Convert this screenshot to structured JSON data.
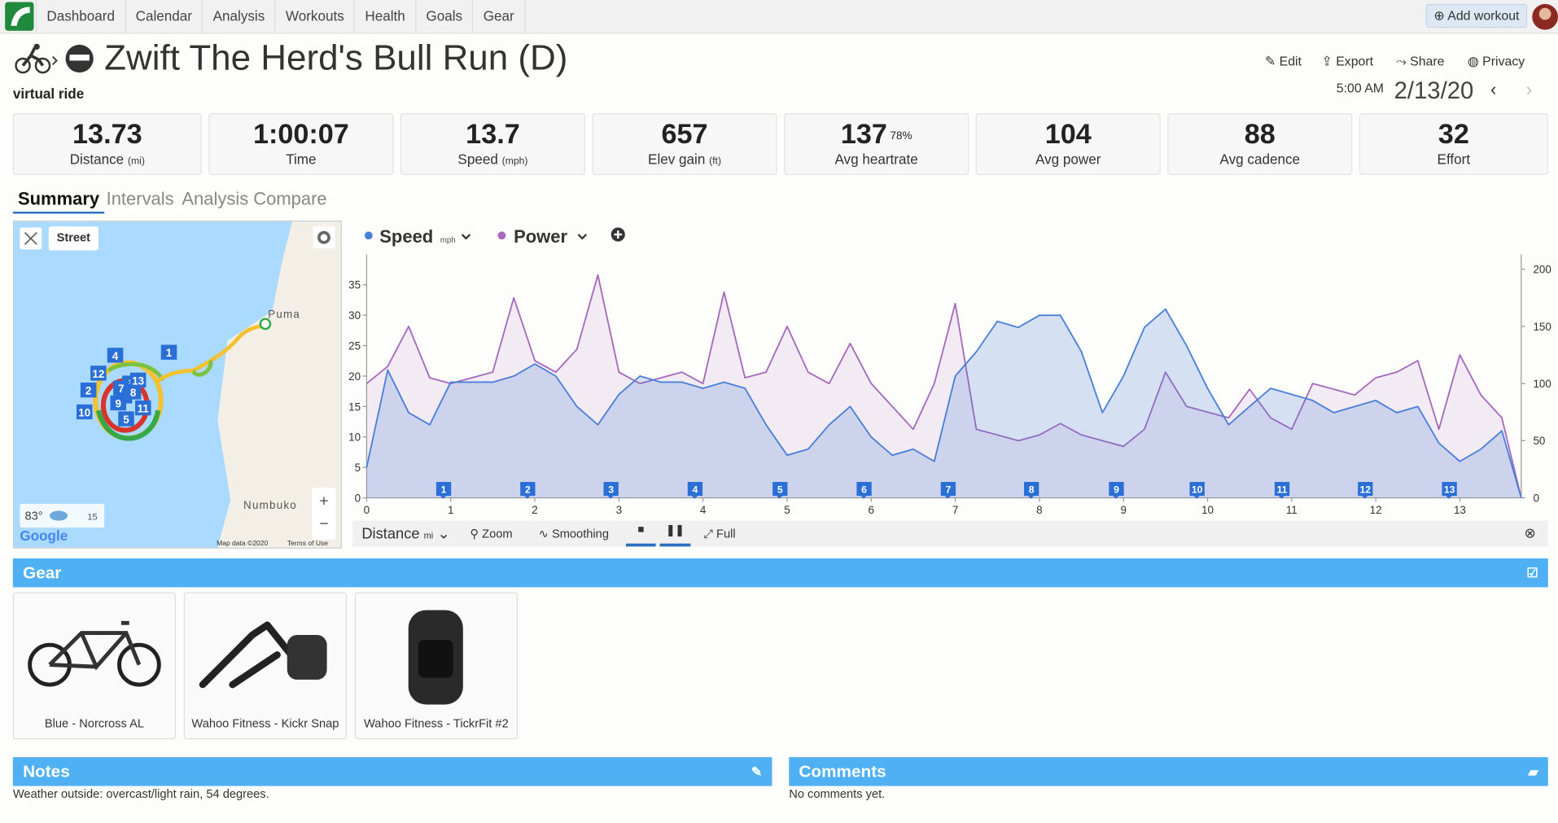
{
  "nav": {
    "items": [
      "Dashboard",
      "Calendar",
      "Analysis",
      "Workouts",
      "Health",
      "Goals",
      "Gear"
    ],
    "add_button": "Add workout"
  },
  "header": {
    "title": "Zwift The Herd's Bull Run (D)",
    "subtitle": "virtual ride",
    "actions": [
      "Edit",
      "Export",
      "Share",
      "Privacy"
    ],
    "time": "5:00 AM",
    "date": "2/13/20"
  },
  "stats": [
    {
      "value": 13.73,
      "label": "Distance",
      "unit": "(mi)"
    },
    {
      "value": "1:00:07",
      "label": "Time"
    },
    {
      "value": 13.7,
      "label": "Speed",
      "unit": "(mph)"
    },
    {
      "value": 657,
      "label": "Elev gain",
      "unit": "(ft)"
    },
    {
      "value": 137,
      "label": "Avg heartrate",
      "extra": "78%"
    },
    {
      "value": 104,
      "label": "Avg power"
    },
    {
      "value": 88,
      "label": "Avg cadence"
    },
    {
      "value": 32,
      "label": "Effort"
    }
  ],
  "tabs": [
    "Summary",
    "Intervals",
    "Analysis",
    "Compare"
  ],
  "map": {
    "style": "Street",
    "places": [
      "Puma",
      "Numbuko"
    ],
    "temp": "83°",
    "wind": "15",
    "logo": "Google",
    "attribution": "Map data ©2020",
    "terms": "Terms of Use",
    "markers": [
      "1",
      "2",
      "3",
      "4",
      "5",
      "6",
      "7",
      "8",
      "9",
      "10",
      "11",
      "12",
      "13"
    ]
  },
  "chart_data": {
    "type": "line",
    "x": [
      0,
      0.25,
      0.5,
      0.75,
      1,
      1.25,
      1.5,
      1.75,
      2,
      2.25,
      2.5,
      2.75,
      3,
      3.25,
      3.5,
      3.75,
      4,
      4.25,
      4.5,
      4.75,
      5,
      5.25,
      5.5,
      5.75,
      6,
      6.25,
      6.5,
      6.75,
      7,
      7.25,
      7.5,
      7.75,
      8,
      8.25,
      8.5,
      8.75,
      9,
      9.25,
      9.5,
      9.75,
      10,
      10.25,
      10.5,
      10.75,
      11,
      11.25,
      11.5,
      11.75,
      12,
      12.25,
      12.5,
      12.75,
      13,
      13.25,
      13.5,
      13.73
    ],
    "series": [
      {
        "name": "Speed",
        "unit": "mph",
        "color": "#4a7fd8",
        "values": [
          5,
          21,
          14,
          12,
          19,
          19,
          19,
          20,
          22,
          20,
          15,
          12,
          17,
          20,
          19,
          19,
          18,
          19,
          18,
          12,
          7,
          8,
          12,
          15,
          10,
          7,
          8,
          6,
          20,
          24,
          29,
          28,
          30,
          30,
          24,
          14,
          20,
          28,
          31,
          25,
          18,
          12,
          15,
          18,
          17,
          16,
          14,
          15,
          16,
          14,
          15,
          9,
          6,
          8,
          11,
          0
        ]
      },
      {
        "name": "Power",
        "axis": "y2",
        "color": "#a569bd",
        "values": [
          100,
          115,
          150,
          105,
          100,
          105,
          110,
          175,
          120,
          110,
          130,
          195,
          110,
          100,
          105,
          110,
          100,
          180,
          105,
          110,
          150,
          110,
          100,
          135,
          100,
          80,
          60,
          100,
          170,
          60,
          55,
          50,
          55,
          65,
          55,
          50,
          45,
          60,
          110,
          80,
          75,
          70,
          95,
          70,
          60,
          100,
          95,
          90,
          105,
          110,
          120,
          60,
          125,
          90,
          70,
          0
        ]
      }
    ],
    "xlim": [
      0,
      13.73
    ],
    "xticks": [
      0,
      1,
      2,
      3,
      4,
      5,
      6,
      7,
      8,
      9,
      10,
      11,
      12,
      13
    ],
    "ylim": [
      0,
      40
    ],
    "yticks": [
      0,
      5,
      10,
      15,
      20,
      25,
      30,
      35
    ],
    "y2lim": [
      0,
      213
    ],
    "y2ticks": [
      0,
      50,
      100,
      150,
      200
    ],
    "grid": false,
    "laps": {
      "x": [
        0.91,
        1.91,
        2.9,
        3.9,
        4.91,
        5.91,
        6.91,
        7.9,
        8.91,
        9.87,
        10.88,
        11.87,
        12.87
      ],
      "labels": [
        "1",
        "2",
        "3",
        "4",
        "5",
        "6",
        "7",
        "8",
        "9",
        "10",
        "11",
        "12",
        "13"
      ]
    }
  },
  "chart_controls": {
    "x_axis": "Distance",
    "x_unit": "mi",
    "zoom": "Zoom",
    "smoothing": "Smoothing",
    "full": "Full"
  },
  "gear": {
    "title": "Gear",
    "items": [
      "Blue - Norcross AL",
      "Wahoo Fitness - Kickr Snap",
      "Wahoo Fitness - TickrFit #2"
    ]
  },
  "notes": {
    "title": "Notes",
    "text": "Weather outside: overcast/light rain, 54 degrees."
  },
  "comments": {
    "title": "Comments",
    "text": "No comments yet."
  }
}
